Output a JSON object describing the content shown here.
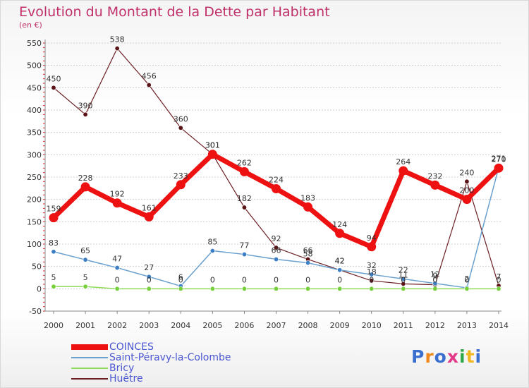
{
  "title": "Evolution du Montant de la Dette par Habitant",
  "subtitle": "(en €)",
  "logo": "Proxiti",
  "colors": {
    "background": "#ffffff",
    "title": "#c0306a",
    "grid": "#d0d0d0",
    "legend_text": "#4a56d0"
  },
  "chart_data": {
    "type": "line",
    "title": "Evolution du Montant de la Dette par Habitant",
    "ylabel": "(en €)",
    "xlabel": "",
    "x": [
      "2000",
      "2001",
      "2002",
      "2003",
      "2004",
      "2005",
      "2006",
      "2007",
      "2008",
      "2009",
      "2010",
      "2011",
      "2012",
      "2013",
      "2014"
    ],
    "ylim": [
      -50,
      550
    ],
    "yticks": [
      -50,
      0,
      50,
      100,
      150,
      200,
      250,
      300,
      350,
      400,
      450,
      500,
      550
    ],
    "grid": true,
    "legend_position": "bottom-left",
    "series": [
      {
        "name": "Huêtre",
        "color": "#6b1e24",
        "point_color": "#5a1418",
        "values": [
          450,
          390,
          538,
          456,
          360,
          301,
          182,
          92,
          66,
          42,
          18,
          11,
          9,
          240,
          7
        ]
      },
      {
        "name": "Saint-Péravy-la-Colombe",
        "color": "#6aa0cf",
        "point_color": "#3d7fc4",
        "values": [
          83,
          65,
          47,
          27,
          6,
          85,
          77,
          66,
          58,
          42,
          32,
          22,
          12,
          2,
          271
        ]
      },
      {
        "name": "Bricy",
        "color": "#8edc5a",
        "point_color": "#76cf3c",
        "values": [
          5,
          5,
          0,
          0,
          0,
          0,
          0,
          0,
          0,
          0,
          0,
          0,
          0,
          0,
          0
        ]
      },
      {
        "name": "COINCES",
        "color": "#ee1111",
        "point_color": "#ee1111",
        "values": [
          159,
          228,
          192,
          161,
          233,
          301,
          262,
          224,
          183,
          124,
          94,
          264,
          232,
          200,
          270
        ]
      }
    ],
    "data_labels": [
      {
        "series": "Huêtre",
        "labels": [
          "450",
          "390",
          "538",
          "456",
          "360",
          "301",
          "182",
          "92",
          "66",
          "42",
          "18",
          "11",
          "9",
          "240",
          "7"
        ]
      },
      {
        "series": "Saint-Péravy-la-Colombe",
        "labels": [
          "83",
          "65",
          "47",
          "27",
          "6",
          "85",
          "77",
          "66",
          "58",
          "42",
          "32",
          "22",
          "12",
          "2",
          "271"
        ]
      },
      {
        "series": "Bricy",
        "labels": [
          "5",
          "5",
          "0",
          "0",
          "0",
          "0",
          "0",
          "0",
          "0",
          "0",
          "0",
          "0",
          "0",
          "0",
          "0"
        ]
      },
      {
        "series": "COINCES",
        "labels": [
          "159",
          "228",
          "192",
          "161",
          "233",
          "301",
          "262",
          "224",
          "183",
          "124",
          "94",
          "264",
          "232",
          "200",
          "270"
        ]
      }
    ]
  },
  "legend": [
    {
      "label": "COINCES",
      "color": "#ee1111"
    },
    {
      "label": "Saint-Péravy-la-Colombe",
      "color": "#6aa0cf"
    },
    {
      "label": "Bricy",
      "color": "#8edc5a"
    },
    {
      "label": "Huêtre",
      "color": "#6b1e24"
    }
  ]
}
